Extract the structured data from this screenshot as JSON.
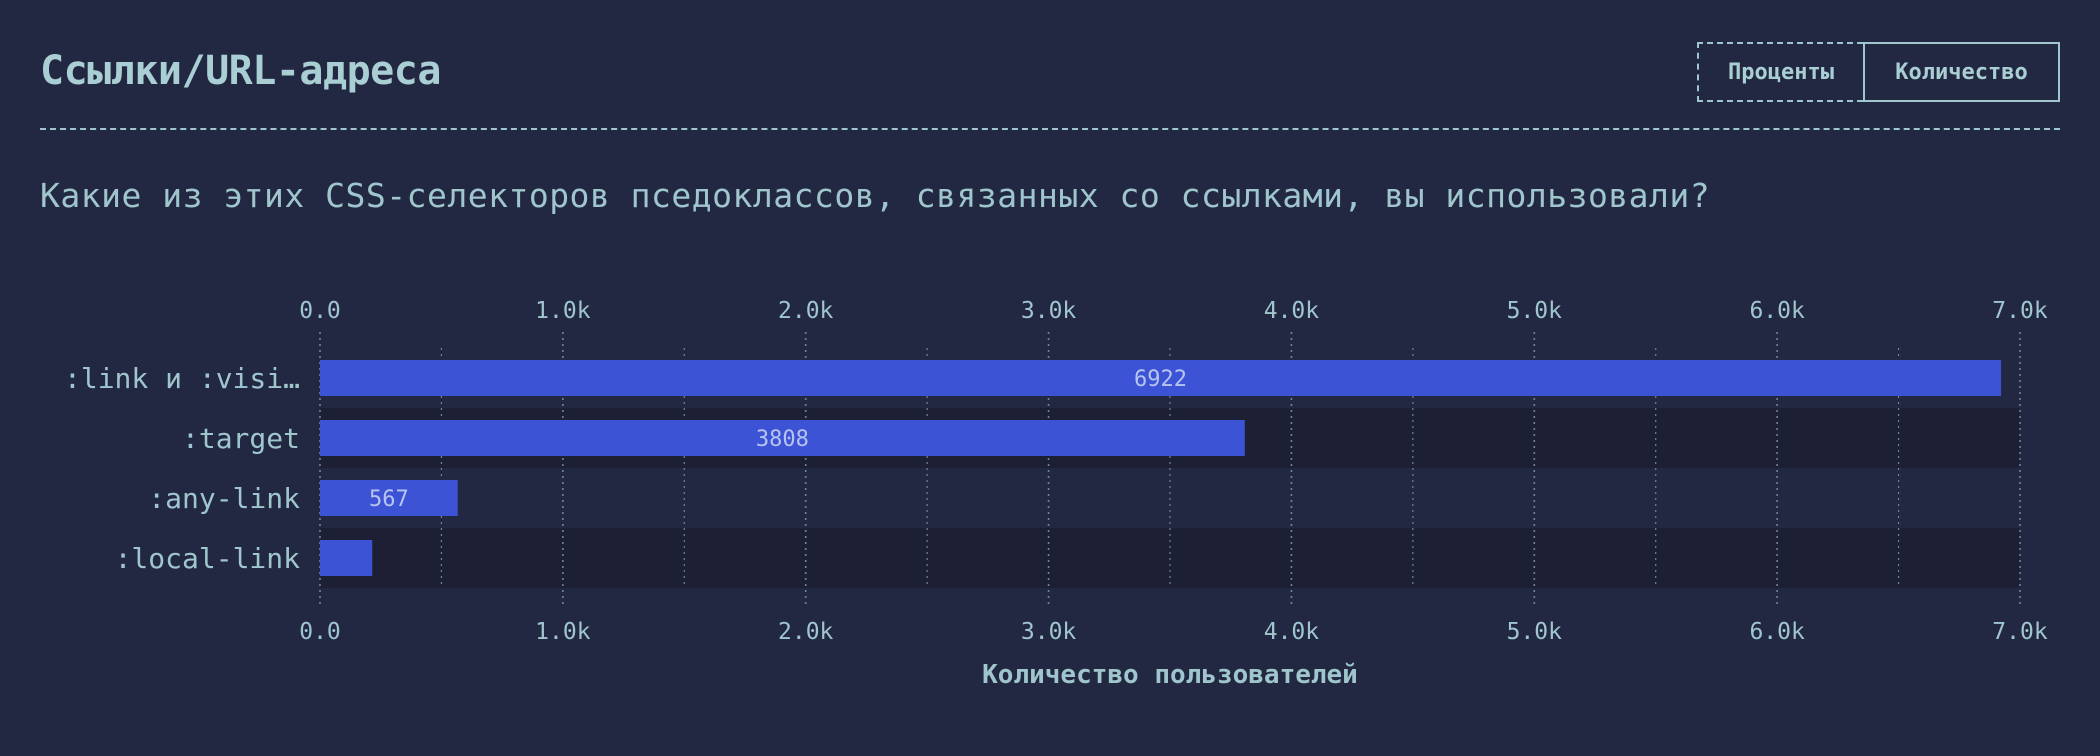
{
  "header": {
    "title": "Ссылки/URL-адреса",
    "toggle": {
      "percent_label": "Проценты",
      "count_label": "Количество",
      "active": "count"
    }
  },
  "question": "Какие из этих CSS-селекторов пседоклассов, связанных со ссылками, вы использовали?",
  "colors": {
    "background": "#232842",
    "bar": "#3d53d6",
    "text": "#9fc6cd",
    "row_band": "#1d2035"
  },
  "chart_data": {
    "type": "bar",
    "orientation": "horizontal",
    "categories": [
      ":link и :visi…",
      ":target",
      ":any-link",
      ":local-link"
    ],
    "values": [
      6922,
      3808,
      567,
      215
    ],
    "value_labels": [
      "6922",
      "3808",
      "567",
      ""
    ],
    "xlim": [
      0,
      7000
    ],
    "xticks": [
      0,
      1000,
      2000,
      3000,
      4000,
      5000,
      6000,
      7000
    ],
    "xtick_labels": [
      "0.0",
      "1.0k",
      "2.0k",
      "3.0k",
      "4.0k",
      "5.0k",
      "6.0k",
      "7.0k"
    ],
    "xlabel": "Количество пользователей",
    "grid": "vertical dotted",
    "axis_labels_top_and_bottom": true
  }
}
